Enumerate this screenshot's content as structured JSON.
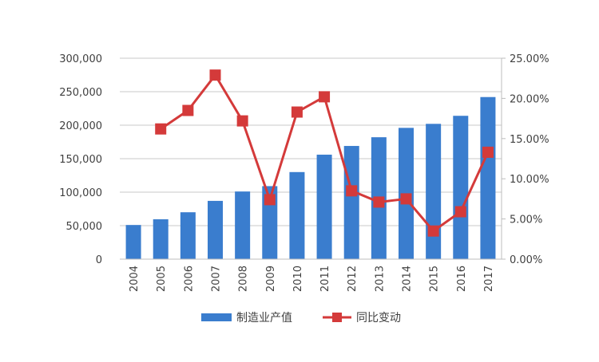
{
  "chart_data": {
    "type": "bar+line",
    "categories": [
      "2004",
      "2005",
      "2006",
      "2007",
      "2008",
      "2009",
      "2010",
      "2011",
      "2012",
      "2013",
      "2014",
      "2015",
      "2016",
      "2017"
    ],
    "series": [
      {
        "name": "制造业产值",
        "type": "bar",
        "axis": "left",
        "color": "#3A7DCE",
        "values": [
          51000,
          59500,
          70000,
          87000,
          101000,
          109000,
          130000,
          156000,
          169000,
          182000,
          196000,
          202000,
          214000,
          242000
        ]
      },
      {
        "name": "同比变动",
        "type": "line",
        "axis": "right",
        "color": "#D43A3A",
        "values": [
          null,
          16.2,
          18.5,
          22.9,
          17.2,
          7.4,
          18.3,
          20.2,
          8.5,
          7.1,
          7.5,
          3.5,
          5.9,
          13.3
        ]
      }
    ],
    "left_axis": {
      "ylim": [
        0,
        300000
      ],
      "ticks": [
        "0",
        "50,000",
        "100,000",
        "150,000",
        "200,000",
        "250,000",
        "300,000"
      ]
    },
    "right_axis": {
      "ylim": [
        0,
        25
      ],
      "ticks": [
        "0.00%",
        "5.00%",
        "10.00%",
        "15.00%",
        "20.00%",
        "25.00%"
      ]
    },
    "grid": true,
    "legend": "bottom"
  }
}
